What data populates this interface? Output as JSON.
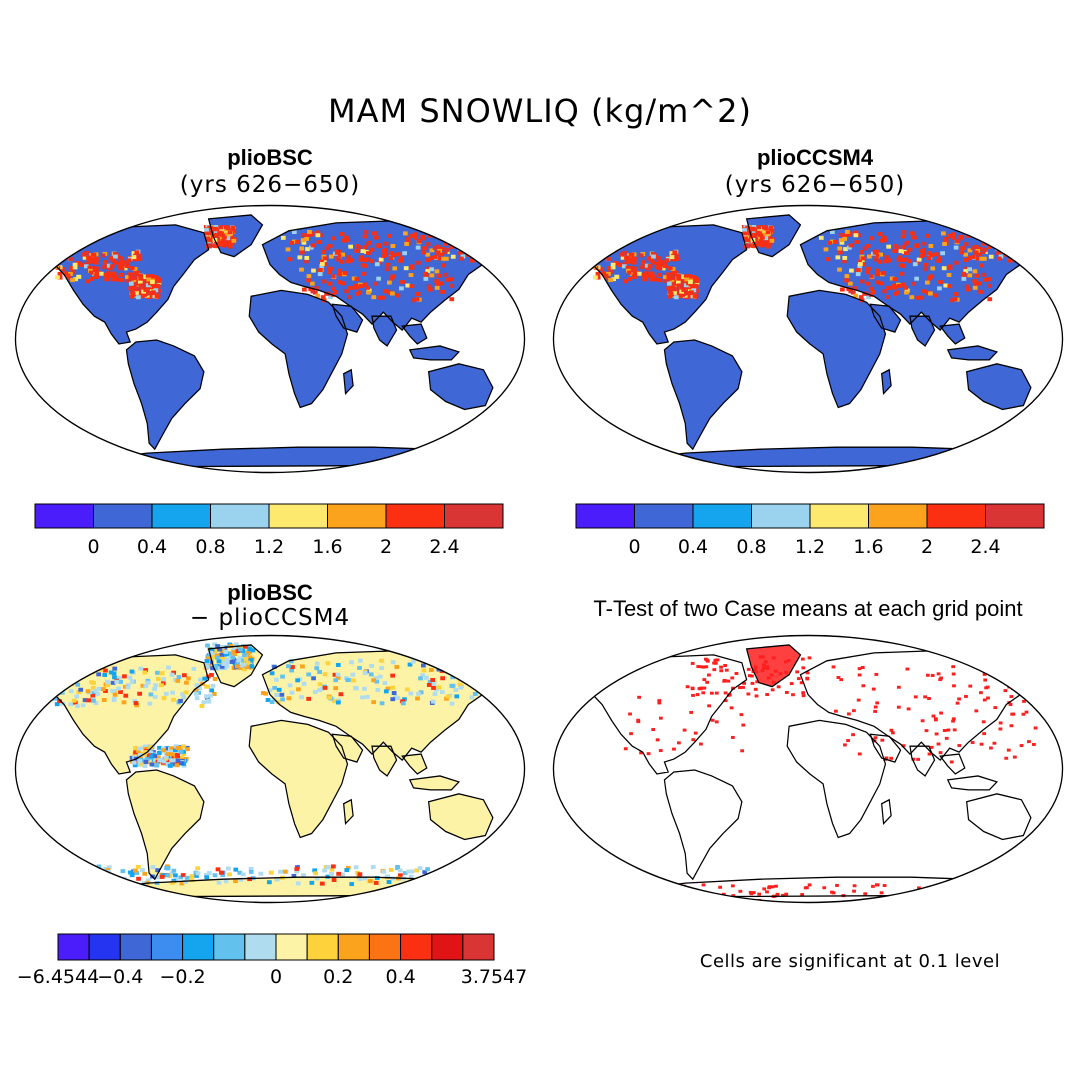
{
  "title": "MAM SNOWLIQ (kg/m^2)",
  "colors": {
    "land_base": "#3f67d6",
    "diff_base": "#fdf3a6",
    "sig": "#ff1f1f",
    "outline": "#000000"
  },
  "panels": {
    "p1": {
      "title": "plioBSC",
      "subtitle": "(yrs 626−650)"
    },
    "p2": {
      "title": "plioCCSM4",
      "subtitle": "(yrs 626−650)"
    },
    "p3": {
      "title": "plioBSC",
      "subtitle": "− plioCCSM4"
    },
    "p4": {
      "title": "T-Test of two Case means at each grid point",
      "note": "Cells are significant at 0.1 level"
    }
  },
  "colorbar_abs": {
    "colors": [
      "#4a1dfa",
      "#3f67d6",
      "#14a5ee",
      "#9bd3ee",
      "#fce96e",
      "#fba31c",
      "#fb2f12",
      "#d93535"
    ],
    "labels": [
      "0",
      "0.4",
      "0.8",
      "1.2",
      "1.6",
      "2",
      "2.4"
    ]
  },
  "colorbar_diff": {
    "colors": [
      "#4a1dfa",
      "#2434f0",
      "#3f67d6",
      "#3d8df0",
      "#14a5ee",
      "#63c1ee",
      "#b0dcef",
      "#fdf3a6",
      "#fdd23a",
      "#fba31c",
      "#fb7312",
      "#fb2f12",
      "#e01414",
      "#d93535"
    ],
    "labels": [
      "−6.4544",
      "−0.4",
      "−0.2",
      "0",
      "0.2",
      "0.4",
      "3.7547"
    ],
    "label_slots": [
      0,
      2,
      4,
      7,
      9,
      11,
      14
    ]
  }
}
